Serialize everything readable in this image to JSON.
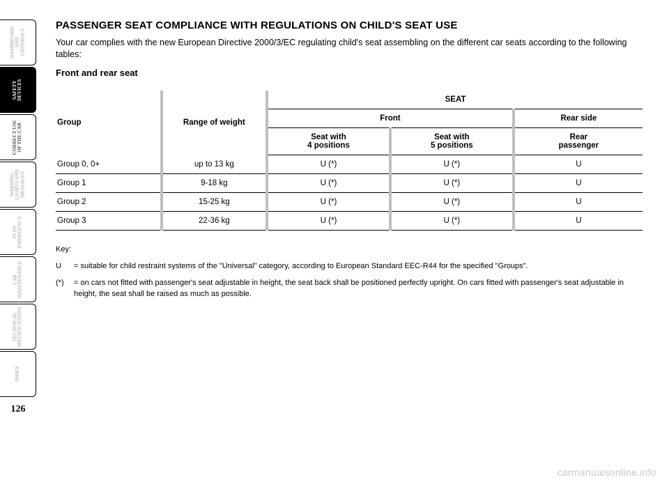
{
  "tabs": [
    {
      "lines": [
        "DASHBOARD",
        "AND",
        "CONTROLS"
      ],
      "active": false,
      "blurred": true
    },
    {
      "lines": [
        "SAFETY",
        "DEVICES"
      ],
      "active": true,
      "blurred": false
    },
    {
      "lines": [
        "CORRECT USE",
        "OF THE CAR"
      ],
      "active": false,
      "blurred": false
    },
    {
      "lines": [
        "WARNING",
        "LIGHTS AND",
        "MESSAGES"
      ],
      "active": false,
      "blurred": true
    },
    {
      "lines": [
        "IN AN",
        "EMERGENCY"
      ],
      "active": false,
      "blurred": true
    },
    {
      "lines": [
        "CAR",
        "MAINTENANCE"
      ],
      "active": false,
      "blurred": true
    },
    {
      "lines": [
        "TECHNICAL",
        "SPECIFICATIONS"
      ],
      "active": false,
      "blurred": true
    },
    {
      "lines": [
        "INDEX"
      ],
      "active": false,
      "blurred": true
    }
  ],
  "page_number": "126",
  "heading": "PASSENGER SEAT COMPLIANCE WITH REGULATIONS ON CHILD'S SEAT USE",
  "intro": "Your car complies with the new European Directive 2000/3/EC regulating child's seat assembling on the different car seats according to the following tables:",
  "subhead": "Front and rear seat",
  "table": {
    "col_group": "Group",
    "col_range": "Range of weight",
    "col_seat_span": "SEAT",
    "col_front_span": "Front",
    "col_rear_span": "Rear side",
    "col_front_4": [
      "Seat with",
      "4 positions"
    ],
    "col_front_5": [
      "Seat with",
      "5 positions"
    ],
    "col_rear_pass": [
      "Rear",
      "passenger"
    ],
    "rows": [
      {
        "group": "Group 0, 0+",
        "range": "up to 13 kg",
        "f4": "U (*)",
        "f5": "U (*)",
        "rear": "U"
      },
      {
        "group": "Group 1",
        "range": "9-18 kg",
        "f4": "U (*)",
        "f5": "U (*)",
        "rear": "U"
      },
      {
        "group": "Group 2",
        "range": "15-25 kg",
        "f4": "U (*)",
        "f5": "U (*)",
        "rear": "U"
      },
      {
        "group": "Group 3",
        "range": "22-36 kg",
        "f4": "U (*)",
        "f5": "U (*)",
        "rear": "U"
      }
    ]
  },
  "key_label": "Key:",
  "key_u_sym": "U",
  "key_u_txt": "= suitable for child restraint systems of the \"Universal\" category, according to European Standard EEC-R44 for the specified \"Groups\".",
  "key_star_sym": "(*)",
  "key_star_txt": "= on cars not fitted with passenger's seat adjustable in height, the seat back shall be positioned perfectly upright. On cars fitted with passenger's seat adjustable in height, the seat shall be raised as much as possible.",
  "watermark": "carmanualsonline.info",
  "colors": {
    "background": "#ffffff",
    "text": "#000000",
    "col_sep": "#bfbfbf",
    "blurred_tab_text": "#b5b5b5",
    "watermark": "#c9c9c9"
  }
}
